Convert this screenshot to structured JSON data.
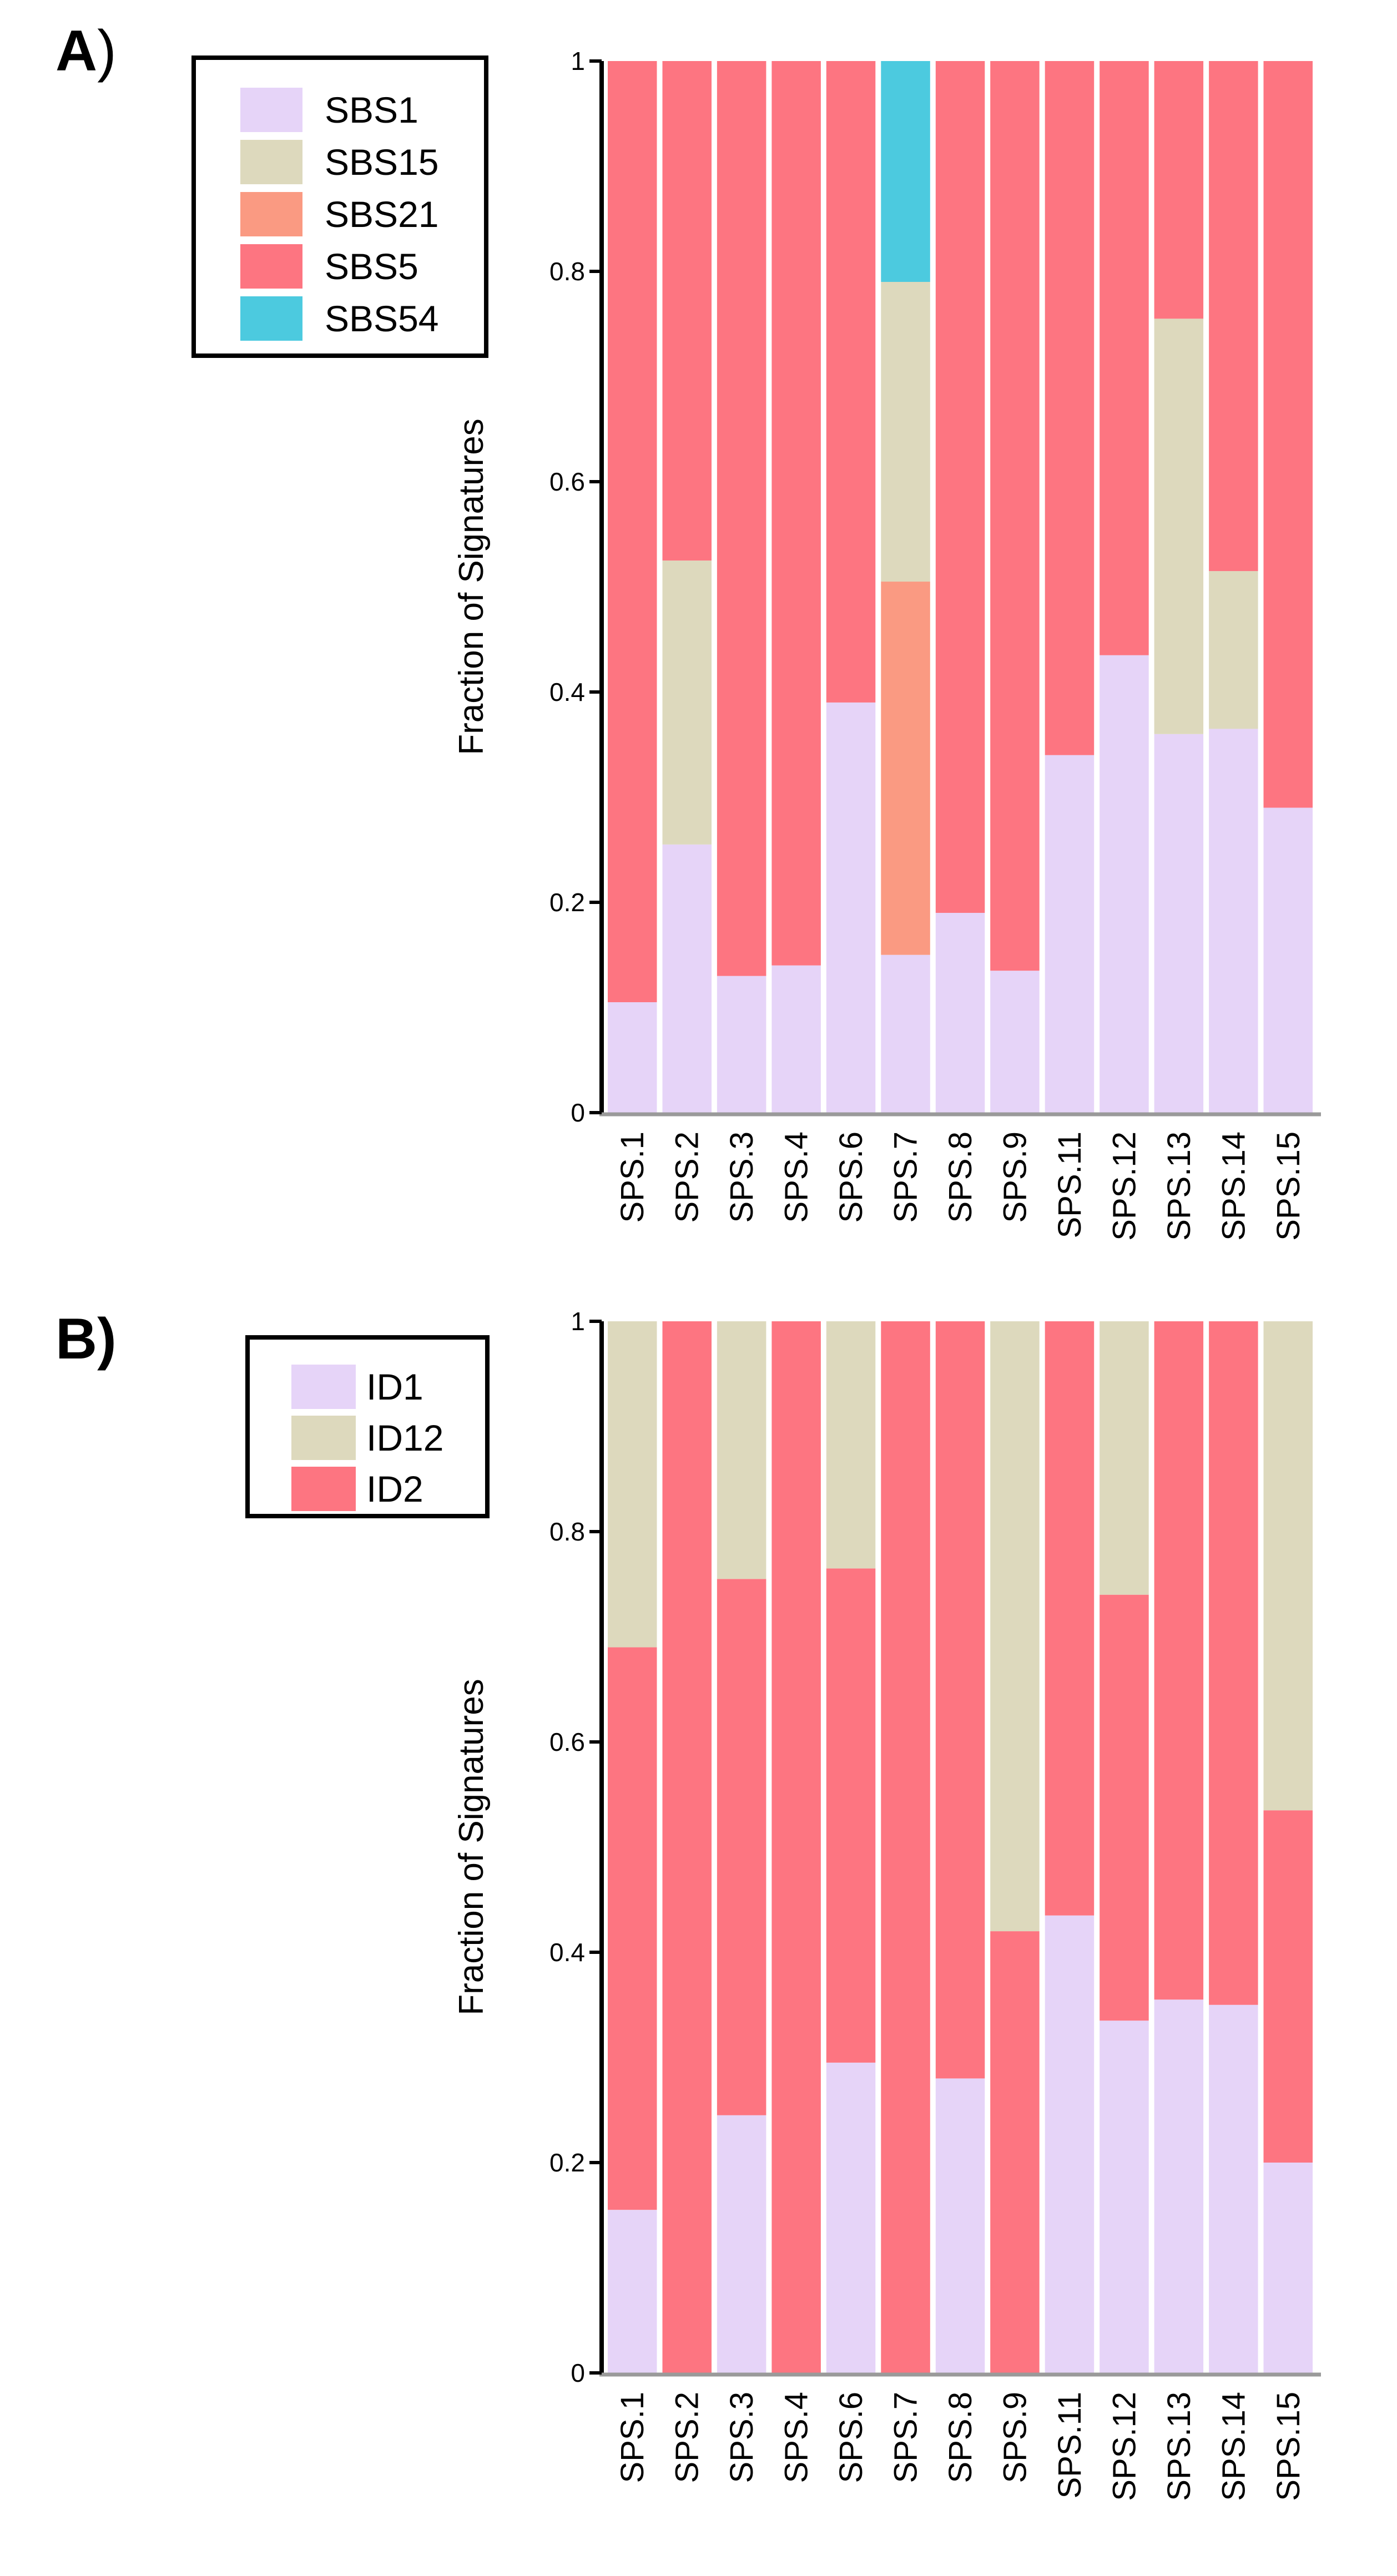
{
  "colors": {
    "SBS1": "#e6d4f8",
    "SBS15": "#ddd9bd",
    "SBS21": "#fa9a82",
    "SBS5": "#fd7581",
    "SBS54": "#4ccadf",
    "ID1": "#e6d4f8",
    "ID12": "#ddd9bd",
    "ID2": "#fd7581",
    "axis": "#000000",
    "baseline": "#9a9a9a"
  },
  "chart_data": [
    {
      "panel": "A",
      "panel_letter": "A",
      "panel_paren": ")",
      "type": "bar",
      "stacked": true,
      "ylabel": "Fraction of Signatures",
      "ylim": [
        0,
        1
      ],
      "yticks": [
        "0",
        "0.2",
        "0.4",
        "0.6",
        "0.8",
        "1"
      ],
      "categories": [
        "SPS.1",
        "SPS.2",
        "SPS.3",
        "SPS.4",
        "SPS.6",
        "SPS.7",
        "SPS.8",
        "SPS.9",
        "SPS.11",
        "SPS.12",
        "SPS.13",
        "SPS.14",
        "SPS.15"
      ],
      "series": [
        {
          "name": "SBS1",
          "values": [
            0.105,
            0.255,
            0.13,
            0.14,
            0.39,
            0.15,
            0.19,
            0.135,
            0.34,
            0.435,
            0.36,
            0.365,
            0.29
          ]
        },
        {
          "name": "SBS15",
          "values": [
            0,
            0.27,
            0,
            0,
            0,
            0.285,
            0,
            0,
            0,
            0,
            0.395,
            0.15,
            0
          ]
        },
        {
          "name": "SBS21",
          "values": [
            0,
            0,
            0,
            0,
            0,
            0.355,
            0,
            0,
            0,
            0,
            0,
            0,
            0
          ]
        },
        {
          "name": "SBS5",
          "values": [
            0.895,
            0.475,
            0.87,
            0.86,
            0.61,
            0,
            0.81,
            0.865,
            0.66,
            0.565,
            0.245,
            0.485,
            0.71
          ]
        },
        {
          "name": "SBS54",
          "values": [
            0,
            0,
            0,
            0,
            0,
            0.21,
            0,
            0,
            0,
            0,
            0,
            0,
            0
          ]
        }
      ],
      "stack_order": [
        "SBS1",
        "SBS21",
        "SBS15",
        "SBS5",
        "SBS54"
      ],
      "legend": [
        "SBS1",
        "SBS15",
        "SBS21",
        "SBS5",
        "SBS54"
      ],
      "legend_position": "top-left"
    },
    {
      "panel": "B",
      "panel_letter": "B)",
      "panel_paren": "",
      "type": "bar",
      "stacked": true,
      "ylabel": "Fraction of Signatures",
      "ylim": [
        0,
        1
      ],
      "yticks": [
        "0",
        "0.2",
        "0.4",
        "0.6",
        "0.8",
        "1"
      ],
      "categories": [
        "SPS.1",
        "SPS.2",
        "SPS.3",
        "SPS.4",
        "SPS.6",
        "SPS.7",
        "SPS.8",
        "SPS.9",
        "SPS.11",
        "SPS.12",
        "SPS.13",
        "SPS.14",
        "SPS.15"
      ],
      "series": [
        {
          "name": "ID1",
          "values": [
            0.155,
            0,
            0.245,
            0,
            0.295,
            0,
            0.28,
            0,
            0.435,
            0.335,
            0.355,
            0.35,
            0.2
          ]
        },
        {
          "name": "ID12",
          "values": [
            0.31,
            0,
            0.245,
            0,
            0.235,
            0,
            0,
            0.58,
            0,
            0.26,
            0,
            0,
            0.465
          ]
        },
        {
          "name": "ID2",
          "values": [
            0.535,
            1,
            0.51,
            1,
            0.47,
            1,
            0.72,
            0.42,
            0.565,
            0.405,
            0.645,
            0.65,
            0.335
          ]
        }
      ],
      "stack_order": [
        "ID1",
        "ID2",
        "ID12"
      ],
      "legend": [
        "ID1",
        "ID12",
        "ID2"
      ],
      "legend_position": "top-left"
    }
  ]
}
